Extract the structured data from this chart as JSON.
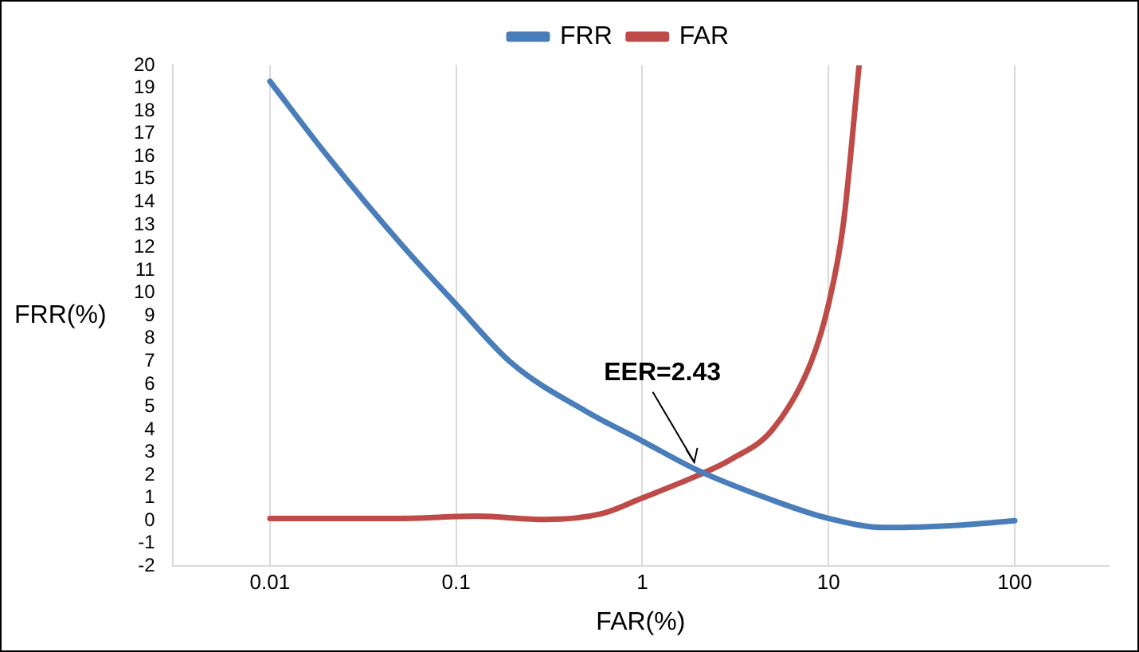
{
  "chart_data": {
    "type": "line",
    "xlabel": "FAR(%)",
    "ylabel": "FRR(%)",
    "log": "x",
    "xlim": [
      0.003,
      320
    ],
    "xticks": [
      0.01,
      0.1,
      1,
      10,
      100
    ],
    "ylim": [
      -2,
      20
    ],
    "yticks": [
      -2,
      -1,
      0,
      1,
      2,
      3,
      4,
      5,
      6,
      7,
      8,
      9,
      10,
      11,
      12,
      13,
      14,
      15,
      16,
      17,
      18,
      19,
      20
    ],
    "grid": "x",
    "legend": "top",
    "marker": "none",
    "line_style": "solid",
    "annotations": [
      {
        "text": "EER=2.43",
        "x": 1.9,
        "y": 2.43
      }
    ],
    "series": [
      {
        "name": "FRR",
        "color": "#4a7ebb",
        "x": [
          0.01,
          0.02,
          0.05,
          0.1,
          0.2,
          0.5,
          1,
          2,
          5,
          10,
          20,
          50,
          100
        ],
        "values": [
          19.3,
          16.1,
          12.2,
          9.5,
          6.9,
          4.8,
          3.5,
          2.2,
          0.9,
          0.1,
          -0.3,
          -0.2,
          0
        ]
      },
      {
        "name": "FAR",
        "color": "#be4b48",
        "x": [
          0.01,
          0.05,
          0.13,
          0.3,
          0.6,
          1,
          2,
          3,
          5,
          8,
          10,
          12,
          14.6
        ],
        "values": [
          0.1,
          0.1,
          0.2,
          0.05,
          0.3,
          1,
          2,
          2.7,
          4,
          6.9,
          9.5,
          13,
          20
        ]
      }
    ]
  }
}
